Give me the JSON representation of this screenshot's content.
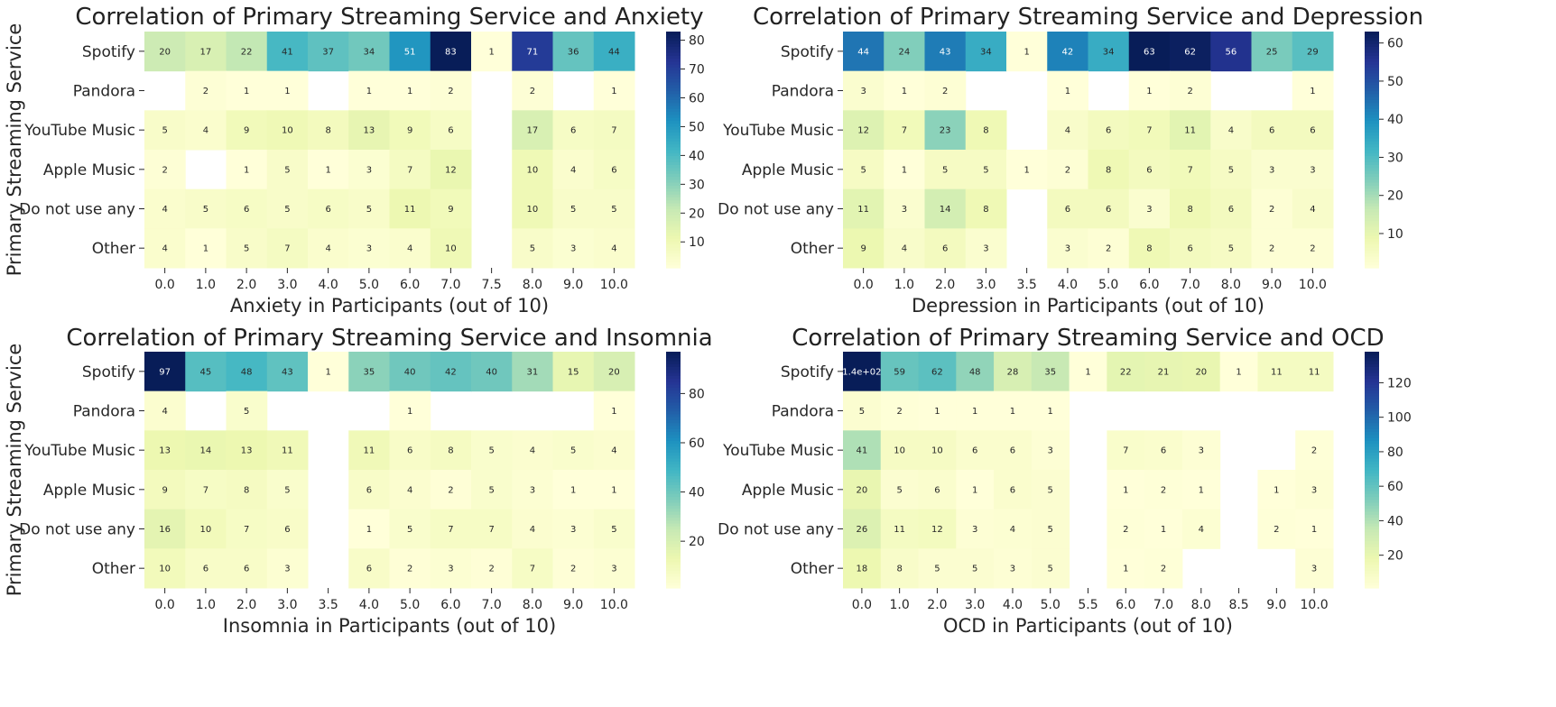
{
  "chart_data": [
    {
      "type": "heatmap",
      "title": "Correlation of Primary Streaming Service and Anxiety",
      "xlabel": "Anxiety in Participants (out of 10)",
      "ylabel": "Primary Streaming Service",
      "x": [
        "0.0",
        "1.0",
        "2.0",
        "3.0",
        "4.0",
        "5.0",
        "6.0",
        "7.0",
        "7.5",
        "8.0",
        "9.0",
        "10.0"
      ],
      "y": [
        "Spotify",
        "Pandora",
        "YouTube Music",
        "Apple Music",
        "Do not use any",
        "Other"
      ],
      "values": [
        [
          20,
          17,
          22,
          41,
          37,
          34,
          51,
          83,
          1,
          71,
          36,
          44
        ],
        [
          null,
          2,
          1,
          1,
          null,
          1,
          1,
          2,
          null,
          2,
          null,
          1
        ],
        [
          5,
          4,
          9,
          10,
          8,
          13,
          9,
          6,
          null,
          17,
          6,
          7
        ],
        [
          2,
          null,
          1,
          5,
          1,
          3,
          7,
          12,
          null,
          10,
          4,
          6
        ],
        [
          4,
          5,
          6,
          5,
          6,
          5,
          11,
          9,
          null,
          10,
          5,
          5
        ],
        [
          4,
          1,
          5,
          7,
          4,
          3,
          4,
          10,
          null,
          5,
          3,
          4
        ]
      ],
      "colorbar": {
        "min": 1,
        "max": 83,
        "ticks": [
          10,
          20,
          30,
          40,
          50,
          60,
          70,
          80
        ]
      },
      "colormap": "YlGnBu"
    },
    {
      "type": "heatmap",
      "title": "Correlation of Primary Streaming Service and Depression",
      "xlabel": "Depression in Participants (out of 10)",
      "ylabel": "",
      "x": [
        "0.0",
        "1.0",
        "2.0",
        "3.0",
        "3.5",
        "4.0",
        "5.0",
        "6.0",
        "7.0",
        "8.0",
        "9.0",
        "10.0"
      ],
      "y": [
        "Spotify",
        "Pandora",
        "YouTube Music",
        "Apple Music",
        "Do not use any",
        "Other"
      ],
      "values": [
        [
          44,
          24,
          43,
          34,
          1,
          42,
          34,
          63,
          62,
          56,
          25,
          29
        ],
        [
          3,
          1,
          2,
          null,
          null,
          1,
          null,
          1,
          2,
          null,
          null,
          1
        ],
        [
          12,
          7,
          23,
          8,
          null,
          4,
          6,
          7,
          11,
          4,
          6,
          6
        ],
        [
          5,
          1,
          5,
          5,
          1,
          2,
          8,
          6,
          7,
          5,
          3,
          3
        ],
        [
          11,
          3,
          14,
          8,
          null,
          6,
          6,
          3,
          8,
          6,
          2,
          4
        ],
        [
          9,
          4,
          6,
          3,
          null,
          3,
          2,
          8,
          6,
          5,
          2,
          2
        ]
      ],
      "colorbar": {
        "min": 1,
        "max": 63,
        "ticks": [
          10,
          20,
          30,
          40,
          50,
          60
        ]
      },
      "colormap": "YlGnBu"
    },
    {
      "type": "heatmap",
      "title": "Correlation of Primary Streaming Service and Insomnia",
      "xlabel": "Insomnia in Participants (out of 10)",
      "ylabel": "Primary Streaming Service",
      "x": [
        "0.0",
        "1.0",
        "2.0",
        "3.0",
        "3.5",
        "4.0",
        "5.0",
        "6.0",
        "7.0",
        "8.0",
        "9.0",
        "10.0"
      ],
      "y": [
        "Spotify",
        "Pandora",
        "YouTube Music",
        "Apple Music",
        "Do not use any",
        "Other"
      ],
      "values": [
        [
          97,
          45,
          48,
          43,
          1,
          35,
          40,
          42,
          40,
          31,
          15,
          20
        ],
        [
          4,
          null,
          5,
          null,
          null,
          null,
          1,
          null,
          null,
          null,
          null,
          1
        ],
        [
          13,
          14,
          13,
          11,
          null,
          11,
          6,
          8,
          5,
          4,
          5,
          4
        ],
        [
          9,
          7,
          8,
          5,
          null,
          6,
          4,
          2,
          5,
          3,
          1,
          1
        ],
        [
          16,
          10,
          7,
          6,
          null,
          1,
          5,
          7,
          7,
          4,
          3,
          5
        ],
        [
          10,
          6,
          6,
          3,
          null,
          6,
          2,
          3,
          2,
          7,
          2,
          3
        ]
      ],
      "colorbar": {
        "min": 1,
        "max": 97,
        "ticks": [
          20,
          40,
          60,
          80
        ]
      },
      "colormap": "YlGnBu"
    },
    {
      "type": "heatmap",
      "title": "Correlation of Primary Streaming Service and OCD",
      "xlabel": "OCD in Participants (out of 10)",
      "ylabel": "",
      "x": [
        "0.0",
        "1.0",
        "2.0",
        "3.0",
        "4.0",
        "5.0",
        "5.5",
        "6.0",
        "7.0",
        "8.0",
        "8.5",
        "9.0",
        "10.0"
      ],
      "y": [
        "Spotify",
        "Pandora",
        "YouTube Music",
        "Apple Music",
        "Do not use any",
        "Other"
      ],
      "values": [
        [
          138,
          59,
          62,
          48,
          28,
          35,
          1,
          22,
          21,
          20,
          1,
          11,
          11
        ],
        [
          5,
          2,
          1,
          1,
          1,
          1,
          null,
          null,
          null,
          null,
          null,
          null,
          null
        ],
        [
          41,
          10,
          10,
          6,
          6,
          3,
          null,
          7,
          6,
          3,
          null,
          null,
          2
        ],
        [
          20,
          5,
          6,
          1,
          6,
          5,
          null,
          1,
          2,
          1,
          null,
          1,
          3
        ],
        [
          26,
          11,
          12,
          3,
          4,
          5,
          null,
          2,
          1,
          4,
          null,
          2,
          1
        ],
        [
          18,
          8,
          5,
          5,
          3,
          5,
          null,
          1,
          2,
          null,
          null,
          null,
          3
        ]
      ],
      "value_labels": {
        "0,0": "1.4e+02"
      },
      "colorbar": {
        "min": 1,
        "max": 138,
        "ticks": [
          20,
          40,
          60,
          80,
          100,
          120
        ]
      },
      "colormap": "YlGnBu"
    }
  ]
}
